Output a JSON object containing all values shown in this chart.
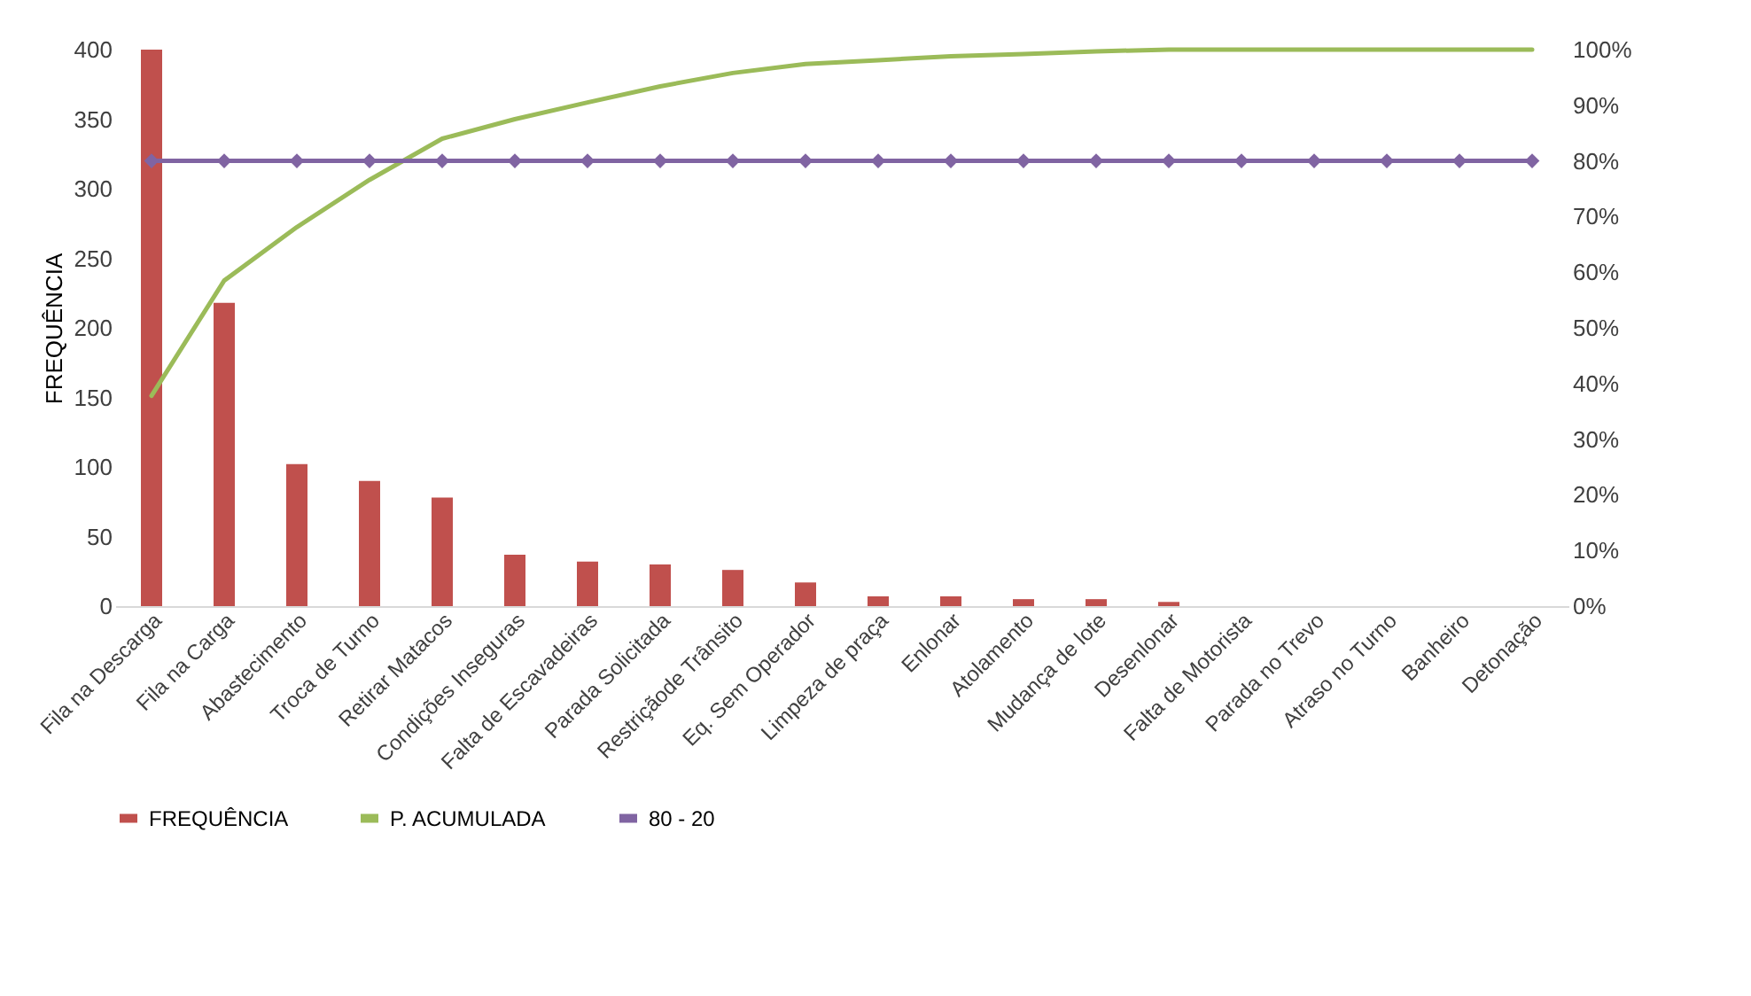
{
  "chart_data": {
    "type": "bar",
    "ylabel": "FREQUÊNCIA",
    "categories": [
      "Fila na Descarga",
      "Fila na Carga",
      "Abastecimento",
      "Troca de Turno",
      "Retirar Matacos",
      "Condições Inseguras",
      "Falta de Escavadeiras",
      "Parada Solicitada",
      "Restriçãode Trânsito",
      "Eq. Sem Operador",
      "Limpeza de praça",
      "Enlonar",
      "Atolamento",
      "Mudança de lote",
      "Desenlonar",
      "Falta de Motorista",
      "Parada no Trevo",
      "Atraso no Turno",
      "Banheiro",
      "Detonação"
    ],
    "series": [
      {
        "name": "FREQUÊNCIA",
        "color": "#c0504d",
        "values": [
          400,
          218,
          102,
          90,
          78,
          37,
          32,
          30,
          26,
          17,
          7,
          7,
          5,
          5,
          3,
          0,
          0,
          0,
          0,
          0
        ]
      },
      {
        "name": "P. ACUMULADA",
        "type": "line",
        "axis": "y2",
        "marker": "none",
        "color": "#9bbb59",
        "values": [
          37.8,
          58.5,
          68.1,
          76.6,
          84.0,
          87.5,
          90.5,
          93.4,
          95.8,
          97.4,
          98.1,
          98.8,
          99.2,
          99.7,
          100,
          100,
          100,
          100,
          100,
          100
        ]
      },
      {
        "name": "80 - 20",
        "type": "line",
        "axis": "y2",
        "marker": "diamond",
        "color": "#8064a2",
        "values": [
          80,
          80,
          80,
          80,
          80,
          80,
          80,
          80,
          80,
          80,
          80,
          80,
          80,
          80,
          80,
          80,
          80,
          80,
          80,
          80
        ]
      }
    ],
    "ylim": [
      0,
      400
    ],
    "yticks": [
      0,
      50,
      100,
      150,
      200,
      250,
      300,
      350,
      400
    ],
    "y2lim": [
      0,
      100
    ],
    "y2ticks": [
      {
        "value": 0,
        "label": "0%"
      },
      {
        "value": 10,
        "label": "10%"
      },
      {
        "value": 20,
        "label": "20%"
      },
      {
        "value": 30,
        "label": "30%"
      },
      {
        "value": 40,
        "label": "40%"
      },
      {
        "value": 50,
        "label": "50%"
      },
      {
        "value": 60,
        "label": "60%"
      },
      {
        "value": 70,
        "label": "70%"
      },
      {
        "value": 80,
        "label": "80%"
      },
      {
        "value": 90,
        "label": "90%"
      },
      {
        "value": 100,
        "label": "100%"
      }
    ],
    "grid": false,
    "legend": "bottom"
  }
}
